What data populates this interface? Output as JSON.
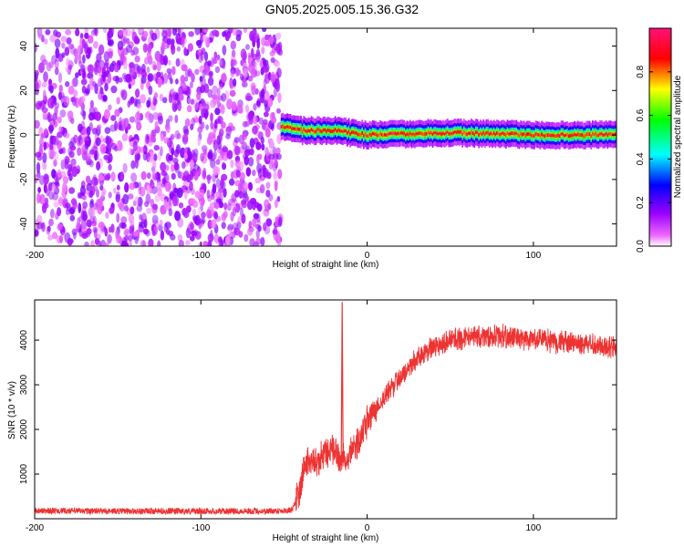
{
  "title": "GN05.2025.005.15.36.G32",
  "colors": {
    "snr_line": "#ee3333",
    "frame": "#000000"
  },
  "chart_data": [
    {
      "type": "heatmap",
      "title": "GN05.2025.005.15.36.G32",
      "xlabel": "Height of straight line (km)",
      "ylabel": "Frequency (Hz)",
      "xlim": [
        -200,
        150
      ],
      "ylim": [
        -50,
        48
      ],
      "xticks": [
        -200,
        -100,
        0,
        100
      ],
      "yticks": [
        -40,
        -20,
        0,
        20,
        40
      ],
      "colorbar": {
        "label": "Normalized spectral amplitude",
        "range": [
          0,
          1
        ],
        "ticks": [
          "0.0",
          "0.2",
          "0.4",
          "0.6",
          "0.8"
        ],
        "colormap": "rainbow (white-magenta-blue-cyan-green-yellow-red-pink)"
      },
      "regions": [
        {
          "x_range": [
            -200,
            -52
          ],
          "description": "broadband noise",
          "freq_range": [
            -50,
            48
          ],
          "amplitude": 0.25
        },
        {
          "x_range": [
            -52,
            150
          ],
          "description": "signal line",
          "freq_center": [
            [
              -52,
              4
            ],
            [
              -40,
              2
            ],
            [
              -20,
              2
            ],
            [
              0,
              0
            ],
            [
              50,
              1
            ],
            [
              100,
              0
            ],
            [
              150,
              0
            ]
          ],
          "amplitude": 0.95
        }
      ]
    },
    {
      "type": "line",
      "xlabel": "Height of straight line (km)",
      "ylabel": "SNR (10 * v/v)",
      "xlim": [
        -200,
        150
      ],
      "ylim": [
        0,
        4900
      ],
      "xticks": [
        -200,
        -100,
        0,
        100
      ],
      "yticks": [
        1000,
        2000,
        3000,
        4000
      ],
      "grid": false,
      "series": [
        {
          "x": [
            -200,
            -150,
            -100,
            -60,
            -45,
            -40,
            -38,
            -35,
            -30,
            -25,
            -20,
            -15,
            -10,
            -5,
            0,
            10,
            20,
            30,
            40,
            50,
            60,
            80,
            100,
            120,
            150
          ],
          "y": [
            180,
            170,
            170,
            170,
            190,
            700,
            1200,
            1300,
            1200,
            1500,
            1500,
            1300,
            1500,
            1700,
            2200,
            2700,
            3200,
            3600,
            3850,
            4000,
            4050,
            4100,
            4000,
            3950,
            3850
          ],
          "noise_amplitude": 250,
          "spikes": [
            {
              "x": -15,
              "y": 4850
            }
          ]
        }
      ]
    }
  ]
}
